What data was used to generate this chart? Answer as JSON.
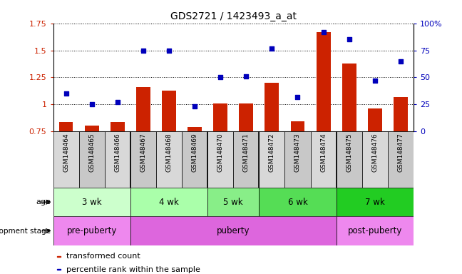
{
  "title": "GDS2721 / 1423493_a_at",
  "samples": [
    "GSM148464",
    "GSM148465",
    "GSM148466",
    "GSM148467",
    "GSM148468",
    "GSM148469",
    "GSM148470",
    "GSM148471",
    "GSM148472",
    "GSM148473",
    "GSM148474",
    "GSM148475",
    "GSM148476",
    "GSM148477"
  ],
  "transformed_count": [
    0.835,
    0.805,
    0.835,
    1.16,
    1.13,
    0.79,
    1.01,
    1.01,
    1.2,
    0.845,
    1.67,
    1.38,
    0.96,
    1.07
  ],
  "percentile_rank": [
    35,
    25,
    27,
    75,
    75,
    23,
    50,
    51,
    77,
    32,
    92,
    85,
    47,
    65
  ],
  "ylim_left": [
    0.75,
    1.75
  ],
  "ylim_right": [
    0,
    100
  ],
  "yticks_left": [
    0.75,
    1.0,
    1.25,
    1.5,
    1.75
  ],
  "ytick_labels_left": [
    "0.75",
    "1",
    "1.25",
    "1.5",
    "1.75"
  ],
  "yticks_right": [
    0,
    25,
    50,
    75,
    100
  ],
  "ytick_labels_right": [
    "0",
    "25",
    "50",
    "75",
    "100%"
  ],
  "bar_color": "#cc2200",
  "dot_color": "#0000bb",
  "age_groups": [
    {
      "label": "3 wk",
      "start": 0,
      "end": 3
    },
    {
      "label": "4 wk",
      "start": 3,
      "end": 6
    },
    {
      "label": "5 wk",
      "start": 6,
      "end": 8
    },
    {
      "label": "6 wk",
      "start": 8,
      "end": 11
    },
    {
      "label": "7 wk",
      "start": 11,
      "end": 14
    }
  ],
  "age_colors": [
    "#ccffcc",
    "#aaffaa",
    "#88ee88",
    "#55dd55",
    "#22cc22"
  ],
  "dev_groups": [
    {
      "label": "pre-puberty",
      "start": 0,
      "end": 3
    },
    {
      "label": "puberty",
      "start": 3,
      "end": 11
    },
    {
      "label": "post-puberty",
      "start": 11,
      "end": 14
    }
  ],
  "dev_colors": [
    "#ee88ee",
    "#dd66dd",
    "#ee88ee"
  ],
  "left_axis_color": "#cc2200",
  "right_axis_color": "#0000bb",
  "legend_bar_label": "transformed count",
  "legend_dot_label": "percentile rank within the sample",
  "sample_bg_even": "#d8d8d8",
  "sample_bg_odd": "#c8c8c8",
  "group_dividers": [
    3,
    6,
    8,
    11
  ]
}
